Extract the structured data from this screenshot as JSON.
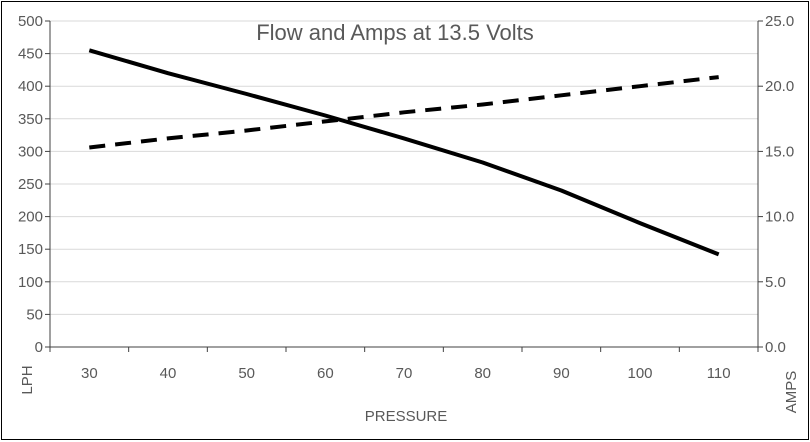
{
  "chart_data": {
    "type": "line",
    "title": "Flow and Amps at 13.5 Volts",
    "xlabel": "PRESSURE",
    "ylabel": "LPH",
    "y2label": "AMPS",
    "x": [
      30,
      40,
      50,
      60,
      70,
      80,
      90,
      100,
      110
    ],
    "x_ticks": [
      "30",
      "40",
      "50",
      "60",
      "70",
      "80",
      "90",
      "100",
      "110"
    ],
    "ylim": [
      0,
      500
    ],
    "y_ticks": [
      "0",
      "50",
      "100",
      "150",
      "200",
      "250",
      "300",
      "350",
      "400",
      "450",
      "500"
    ],
    "y2lim": [
      0,
      25
    ],
    "y2_ticks": [
      "0.0",
      "5.0",
      "10.0",
      "15.0",
      "20.0",
      "25.0"
    ],
    "grid": true,
    "legend": "none",
    "series": [
      {
        "axis": "left",
        "style": "solid",
        "color": "#000000",
        "values": [
          455,
          420,
          388,
          355,
          320,
          283,
          240,
          190,
          142
        ]
      },
      {
        "axis": "right",
        "style": "dashed",
        "color": "#000000",
        "values": [
          15.3,
          16.0,
          16.6,
          17.3,
          18.0,
          18.6,
          19.3,
          20.0,
          20.7
        ]
      }
    ]
  }
}
